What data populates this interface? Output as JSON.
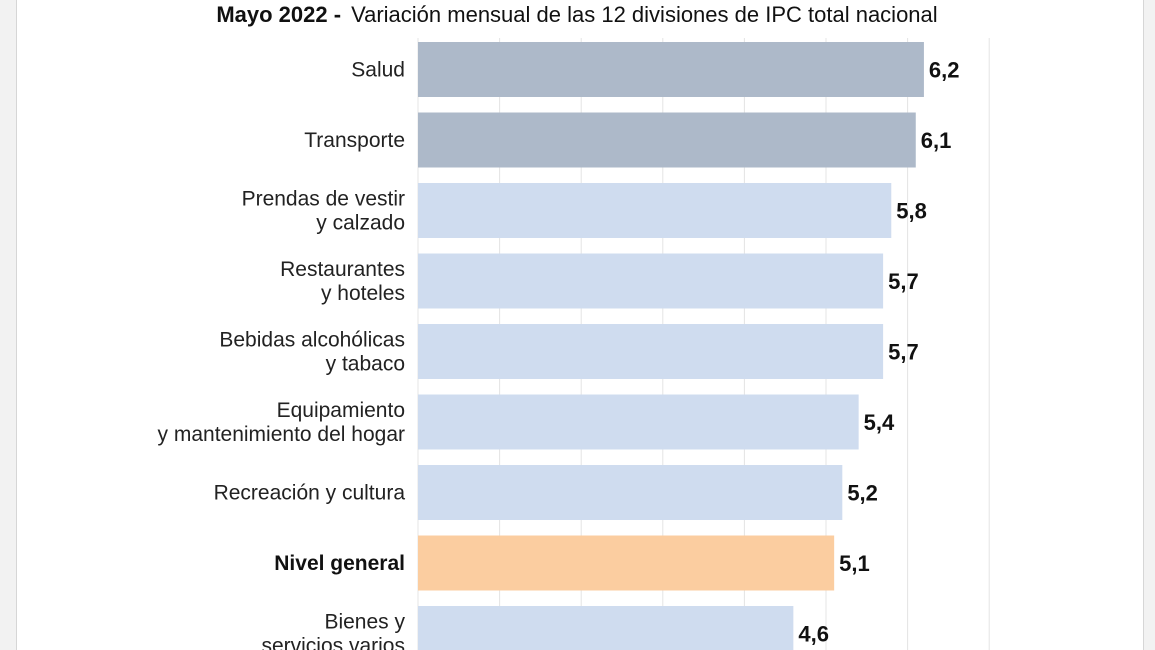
{
  "chart_data": {
    "type": "bar",
    "orientation": "horizontal",
    "title_bold": "Mayo 2022 -",
    "title_rest": "Variación mensual de las 12 divisiones de IPC total nacional",
    "categories": [
      [
        "Salud"
      ],
      [
        "Transporte"
      ],
      [
        "Prendas de vestir",
        "y calzado"
      ],
      [
        "Restaurantes",
        "y hoteles"
      ],
      [
        "Bebidas alcohólicas",
        "y tabaco"
      ],
      [
        "Equipamiento",
        "y mantenimiento del hogar"
      ],
      [
        "Recreación y cultura"
      ],
      [
        "Nivel general"
      ],
      [
        "Bienes y",
        "servicios varios"
      ]
    ],
    "values": [
      6.2,
      6.1,
      5.8,
      5.7,
      5.7,
      5.4,
      5.2,
      5.1,
      4.6
    ],
    "value_labels": [
      "6,2",
      "6,1",
      "5,8",
      "5,7",
      "5,7",
      "5,4",
      "5,2",
      "5,1",
      "4,6"
    ],
    "bar_colors": [
      "#adb9c9",
      "#adb9c9",
      "#cfdcef",
      "#cfdcef",
      "#cfdcef",
      "#cfdcef",
      "#cfdcef",
      "#fbcda0",
      "#cfdcef"
    ],
    "bold_categories": [
      7
    ],
    "xlim": [
      0,
      7
    ],
    "grid": true
  }
}
